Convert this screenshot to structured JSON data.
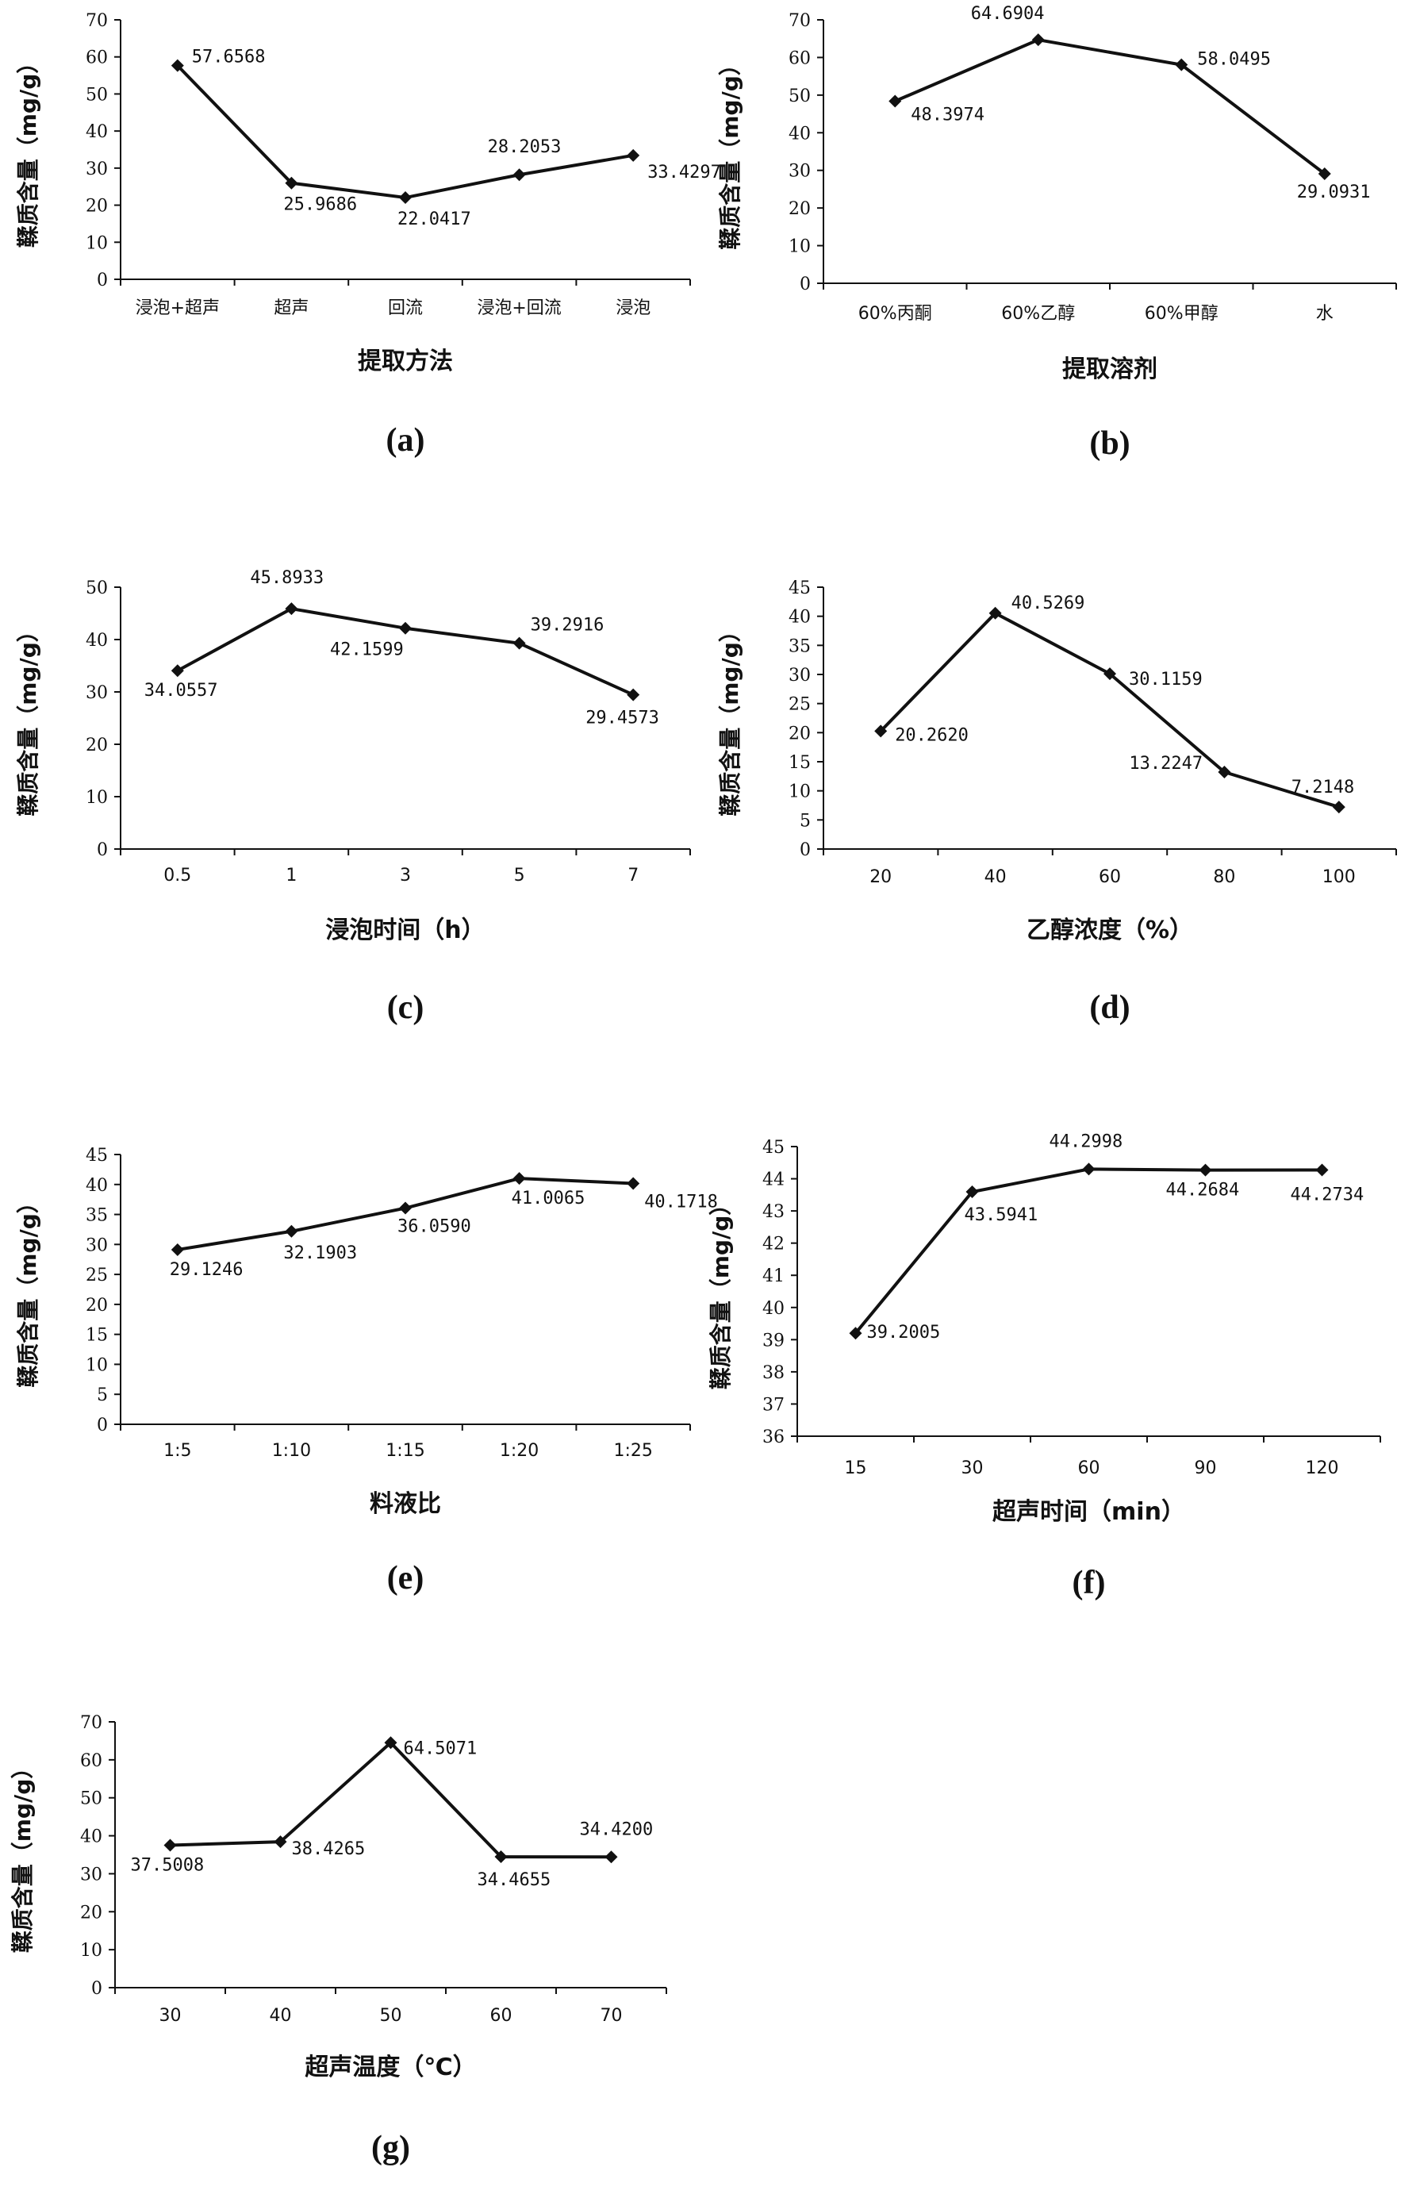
{
  "chart_data": [
    {
      "type": "line",
      "panel": "(a)",
      "ylabel": "鞣质含量（mg/g）",
      "xlabel": "提取方法",
      "ylim": [
        0,
        70
      ],
      "yticks": [
        0,
        10,
        20,
        30,
        40,
        50,
        60,
        70
      ],
      "categories": [
        "浸泡+超声",
        "超声",
        "回流",
        "浸泡+回流",
        "浸泡"
      ],
      "values": [
        57.6568,
        25.9686,
        22.0417,
        28.2053,
        33.4297
      ],
      "data_labels": [
        "57.6568",
        "25.9686",
        "22.0417",
        "28.2053",
        "33.4297"
      ]
    },
    {
      "type": "line",
      "panel": "(b)",
      "ylabel": "鞣质含量（mg/g）",
      "xlabel": "提取溶剂",
      "ylim": [
        0,
        70
      ],
      "yticks": [
        0,
        10,
        20,
        30,
        40,
        50,
        60,
        70
      ],
      "categories": [
        "60%丙酮",
        "60%乙醇",
        "60%甲醇",
        "水"
      ],
      "values": [
        48.3974,
        64.6904,
        58.0495,
        29.0931
      ],
      "data_labels": [
        "48.3974",
        "64.6904",
        "58.0495",
        "29.0931"
      ]
    },
    {
      "type": "line",
      "panel": "(c)",
      "ylabel": "鞣质含量（mg/g）",
      "xlabel": "浸泡时间（h）",
      "ylim": [
        0,
        50
      ],
      "yticks": [
        0,
        10,
        20,
        30,
        40,
        50
      ],
      "categories": [
        "0.5",
        "1",
        "3",
        "5",
        "7"
      ],
      "values": [
        34.0557,
        45.8933,
        42.1599,
        39.2916,
        29.4573
      ],
      "data_labels": [
        "34.0557",
        "45.8933",
        "42.1599",
        "39.2916",
        "29.4573"
      ]
    },
    {
      "type": "line",
      "panel": "(d)",
      "ylabel": "鞣质含量（mg/g）",
      "xlabel": "乙醇浓度（%）",
      "ylim": [
        0,
        45
      ],
      "yticks": [
        0,
        5,
        10,
        15,
        20,
        25,
        30,
        35,
        40,
        45
      ],
      "categories": [
        "20",
        "40",
        "60",
        "80",
        "100"
      ],
      "values": [
        20.262,
        40.5269,
        30.1159,
        13.2247,
        7.2148
      ],
      "data_labels": [
        "20.2620",
        "40.5269",
        "30.1159",
        "13.2247",
        "7.2148"
      ]
    },
    {
      "type": "line",
      "panel": "(e)",
      "ylabel": "鞣质含量（mg/g）",
      "xlabel": "料液比",
      "ylim": [
        0,
        45
      ],
      "yticks": [
        0,
        5,
        10,
        15,
        20,
        25,
        30,
        35,
        40,
        45
      ],
      "categories": [
        "1:5",
        "1:10",
        "1:15",
        "1:20",
        "1:25"
      ],
      "values": [
        29.1246,
        32.1903,
        36.059,
        41.0065,
        40.1718
      ],
      "data_labels": [
        "29.1246",
        "32.1903",
        "36.0590",
        "41.0065",
        "40.1718"
      ]
    },
    {
      "type": "line",
      "panel": "(f)",
      "ylabel": "鞣质含量（mg/g）",
      "xlabel": "超声时间（min）",
      "ylim": [
        36,
        45
      ],
      "yticks": [
        36,
        37,
        38,
        39,
        40,
        41,
        42,
        43,
        44,
        45
      ],
      "categories": [
        "15",
        "30",
        "60",
        "90",
        "120"
      ],
      "values": [
        39.2005,
        43.5941,
        44.2998,
        44.2684,
        44.2734
      ],
      "data_labels": [
        "39.2005",
        "43.5941",
        "44.2998",
        "44.2684",
        "44.2734"
      ]
    },
    {
      "type": "line",
      "panel": "(g)",
      "ylabel": "鞣质含量（mg/g）",
      "xlabel": "超声温度（℃）",
      "ylim": [
        0,
        70
      ],
      "yticks": [
        0,
        10,
        20,
        30,
        40,
        50,
        60,
        70
      ],
      "categories": [
        "30",
        "40",
        "50",
        "60",
        "70"
      ],
      "values": [
        37.5008,
        38.4265,
        64.5071,
        34.4655,
        34.42
      ],
      "data_labels": [
        "37.5008",
        "38.4265",
        "64.5071",
        "34.4655",
        "34.4200"
      ]
    }
  ]
}
